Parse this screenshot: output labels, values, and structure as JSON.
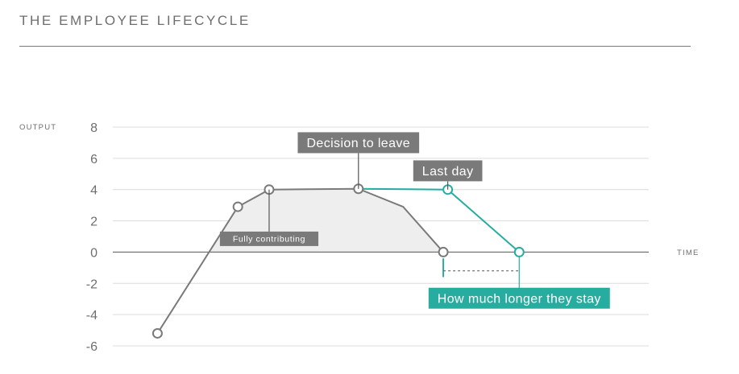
{
  "page": {
    "title": "THE EMPLOYEE LIFECYCLE"
  },
  "colors": {
    "gray": "#7a7a7a",
    "teal": "#27ada0",
    "fill": "#eeeeee",
    "grid": "#dcdcdc",
    "label_bg": "#7a7a7a"
  },
  "chart_data": {
    "type": "line",
    "title": "",
    "xlabel": "TIME",
    "ylabel": "OUTPUT",
    "ylim": [
      -6,
      8
    ],
    "yticks": [
      8,
      6,
      4,
      2,
      0,
      -2,
      -4,
      -6
    ],
    "xlim": [
      0,
      12
    ],
    "grid": true,
    "series": [
      {
        "color": "gray",
        "points": [
          {
            "x": 1.0,
            "y": -5.2,
            "marker": true
          },
          {
            "x": 2.8,
            "y": 2.9,
            "marker": true
          },
          {
            "x": 3.5,
            "y": 4.0,
            "marker": true
          },
          {
            "x": 5.5,
            "y": 4.05,
            "marker": true
          },
          {
            "x": 6.5,
            "y": 2.9,
            "marker": false
          },
          {
            "x": 7.4,
            "y": 0,
            "marker": true
          }
        ]
      },
      {
        "color": "teal",
        "points": [
          {
            "x": 5.5,
            "y": 4.05,
            "marker": false
          },
          {
            "x": 7.5,
            "y": 4.0,
            "marker": true
          },
          {
            "x": 9.1,
            "y": 0,
            "marker": true
          }
        ]
      }
    ],
    "shaded_area": {
      "color": "fill",
      "from_x": 2.15,
      "points_on_series": 0
    },
    "annotations": [
      {
        "text": "Fully contributing",
        "style": "dark",
        "anchor_x": 3.5,
        "anchor_y": 4.0,
        "box_y": 0.85,
        "size": "small"
      },
      {
        "text": "Decision to leave",
        "style": "dark",
        "anchor_x": 5.5,
        "anchor_y": 4.05,
        "box_y": 7.0,
        "size": "large"
      },
      {
        "text": "Last day",
        "style": "dark",
        "anchor_x": 7.5,
        "anchor_y": 4.0,
        "box_y": 5.2,
        "size": "large"
      },
      {
        "text": "How much longer they stay",
        "style": "teal",
        "anchor_x": 9.1,
        "anchor_y": 0,
        "box_y": -2.95,
        "size": "large"
      }
    ]
  }
}
